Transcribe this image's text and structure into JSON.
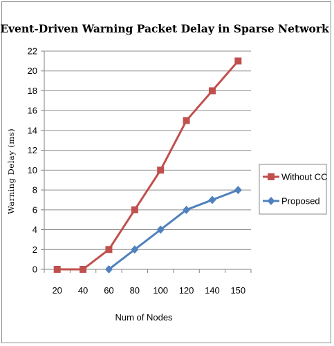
{
  "chart_data": {
    "type": "line",
    "title": "Event-Driven Warning Packet Delay in Sparse Network",
    "xlabel": "Num of Nodes",
    "ylabel": "Warning Delay (ms)",
    "categories": [
      "20",
      "40",
      "60",
      "80",
      "100",
      "120",
      "140",
      "150"
    ],
    "ylim": [
      0,
      22
    ],
    "yticks": [
      0,
      2,
      4,
      6,
      8,
      10,
      12,
      14,
      16,
      18,
      20,
      22
    ],
    "grid": true,
    "legend_position": "right",
    "series": [
      {
        "name": "Without CC",
        "values": [
          0,
          0,
          2,
          6,
          10,
          15,
          18,
          21
        ],
        "color": "#c0504d",
        "marker": "square"
      },
      {
        "name": "Proposed",
        "values": [
          null,
          null,
          0,
          2,
          4,
          6,
          7,
          8
        ],
        "color": "#4f81bd",
        "marker": "diamond"
      }
    ]
  }
}
